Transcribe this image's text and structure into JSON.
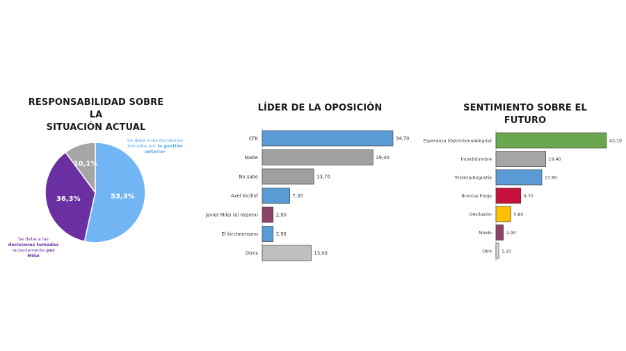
{
  "pie_title_line1": "RESPONSABILIDAD SOBRE LA",
  "pie_title_line2": "SITUACIÓN ACTUAL",
  "note_gestion": {
    "pre": "Se debe a las decisiones tomadas por ",
    "strong": "la gestión anterior"
  },
  "note_milei": {
    "pre": "Se debe a las ",
    "strong1": "decisiones tomadas",
    "mid": " recientemente ",
    "strong2": "por Milei"
  },
  "lider_title": "LÍDER DE LA OPOSICIÓN",
  "futuro_title": "SENTIMIENTO SOBRE EL FUTURO",
  "colors": {
    "blue": "#5b9bd5",
    "gray": "#a0a0a0",
    "maroon": "#8e4466",
    "purple": "#6a2fa0",
    "lightblue": "#72b5f5",
    "pie_gray": "#a6a6a6",
    "green": "#6aa84f",
    "red": "#c8103c",
    "yellow": "#ffc000",
    "pale": "#d6dce5"
  },
  "chart_data": [
    {
      "type": "pie",
      "title": "RESPONSABILIDAD SOBRE LA SITUACIÓN ACTUAL",
      "slices": [
        {
          "label": "53,3%",
          "value": 53.3,
          "color": "#72b5f5"
        },
        {
          "label": "36,3%",
          "value": 36.3,
          "color": "#6a2fa0"
        },
        {
          "label": "10,1%",
          "value": 10.1,
          "color": "#a6a6a6"
        }
      ]
    },
    {
      "type": "bar",
      "orientation": "horizontal",
      "title": "LÍDER DE LA OPOSICIÓN",
      "categories": [
        "CFK",
        "Nadie",
        "No sabe",
        "Axel Kicillof",
        "Javier Milei (él mismo)",
        "El kirchnerismo",
        "Otros"
      ],
      "values": [
        34.7,
        29.4,
        13.7,
        7.3,
        2.9,
        2.9,
        13.0
      ],
      "value_labels": [
        "34,70",
        "29,40",
        "13,70",
        "7,30",
        "2,90",
        "2,90",
        "13,00"
      ],
      "colors": [
        "#5b9bd5",
        "#a0a0a0",
        "#a0a0a0",
        "#5b9bd5",
        "#8e4466",
        "#5b9bd5",
        "#bfbfbf"
      ]
    },
    {
      "type": "bar",
      "orientation": "horizontal",
      "title": "SENTIMIENTO SOBRE EL FUTURO",
      "categories": [
        "Esperanza (Optimismo/Alegría)",
        "Incertidumbre",
        "Tristeza/Angustia",
        "Bronca/ Enojo",
        "Desilusión",
        "Miedo",
        "Otro"
      ],
      "values": [
        43.1,
        19.4,
        17.9,
        9.7,
        5.8,
        2.9,
        1.1
      ],
      "value_labels": [
        "43,10",
        "19,40",
        "17,90",
        "9,70",
        "5,80",
        "2,90",
        "1,10"
      ],
      "colors": [
        "#6aa84f",
        "#a6a6a6",
        "#5b9bd5",
        "#c8103c",
        "#ffc000",
        "#8e4466",
        "#d6dce5"
      ]
    }
  ]
}
